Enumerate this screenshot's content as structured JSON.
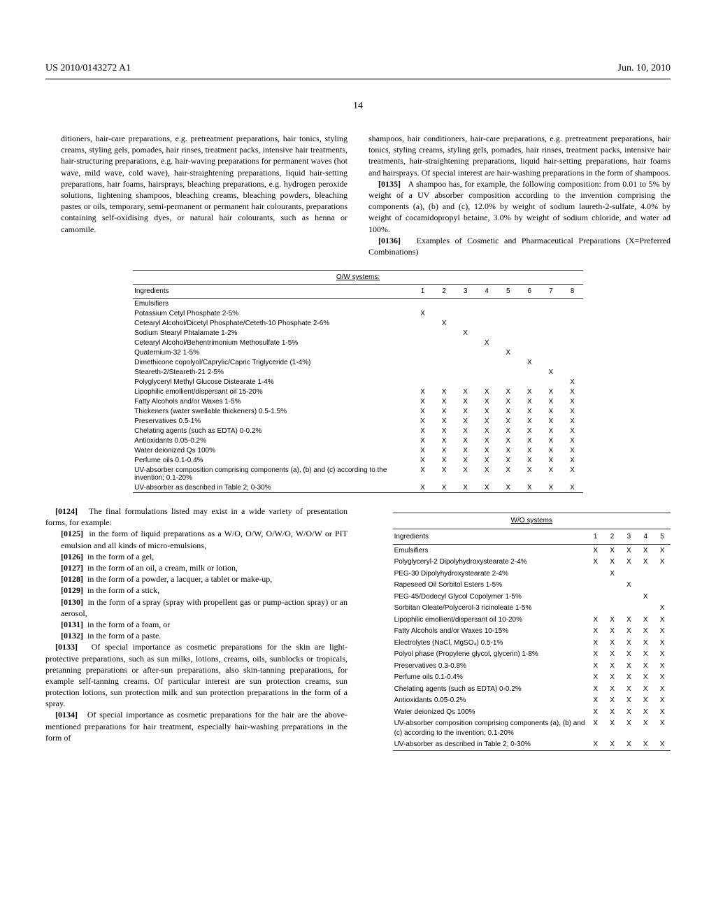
{
  "header": {
    "left": "US 2010/0143272 A1",
    "right": "Jun. 10, 2010"
  },
  "page_number": "14",
  "left_col": {
    "p1": "ditioners, hair-care preparations, e.g. pretreatment preparations, hair tonics, styling creams, styling gels, pomades, hair rinses, treatment packs, intensive hair treatments, hair-structuring preparations, e.g. hair-waving preparations for permanent waves (hot wave, mild wave, cold wave), hair-straightening preparations, liquid hair-setting preparations, hair foams, hairsprays, bleaching preparations, e.g. hydrogen peroxide solutions, lightening shampoos, bleaching creams, bleaching powders, bleaching pastes or oils, temporary, semi-permanent or permanent hair colourants, preparations containing self-oxidising dyes, or natural hair colourants, such as henna or camomile."
  },
  "right_col": {
    "p1": "shampoos, hair conditioners, hair-care preparations, e.g. pretreatment preparations, hair tonics, styling creams, styling gels, pomades, hair rinses, treatment packs, intensive hair treatments, hair-straightening preparations, liquid hair-setting preparations, hair foams and hairsprays. Of special interest are hair-washing preparations in the form of shampoos.",
    "p0135_num": "[0135]",
    "p0135": "A shampoo has, for example, the following composition: from 0.01 to 5% by weight of a UV absorber composition according to the invention comprising the components (a), (b) and (c), 12.0% by weight of sodium laureth-2-sulfate, 4.0% by weight of cocamidopropyl betaine, 3.0% by weight of sodium chloride, and water ad 100%.",
    "p0136_num": "[0136]",
    "p0136": "Examples of Cosmetic and Pharmaceutical Preparations (X=Preferred Combinations)"
  },
  "mid_left": {
    "p0124_num": "[0124]",
    "p0124": "The final formulations listed may exist in a wide variety of presentation forms, for example:",
    "p0125_num": "[0125]",
    "p0125": "in the form of liquid preparations as a W/O, O/W, O/W/O, W/O/W or PIT emulsion and all kinds of micro-emulsions,",
    "p0126_num": "[0126]",
    "p0126": "in the form of a gel,",
    "p0127_num": "[0127]",
    "p0127": "in the form of an oil, a cream, milk or lotion,",
    "p0128_num": "[0128]",
    "p0128": "in the form of a powder, a lacquer, a tablet or make-up,",
    "p0129_num": "[0129]",
    "p0129": "in the form of a stick,",
    "p0130_num": "[0130]",
    "p0130": "in the form of a spray (spray with propellent gas or pump-action spray) or an aerosol,",
    "p0131_num": "[0131]",
    "p0131": "in the form of a foam, or",
    "p0132_num": "[0132]",
    "p0132": "in the form of a paste.",
    "p0133_num": "[0133]",
    "p0133": "Of special importance as cosmetic preparations for the skin are light-protective preparations, such as sun milks, lotions, creams, oils, sunblocks or tropicals, pretanning preparations or after-sun preparations, also skin-tanning preparations, for example self-tanning creams. Of particular interest are sun protection creams, sun protection lotions, sun protection milk and sun protection preparations in the form of a spray.",
    "p0134_num": "[0134]",
    "p0134": "Of special importance as cosmetic preparations for the hair are the above-mentioned preparations for hair treatment, especially hair-washing preparations in the form of"
  },
  "ow_table": {
    "title": "O/W systems:",
    "head_label": "Ingredients",
    "cols": [
      "1",
      "2",
      "3",
      "4",
      "5",
      "6",
      "7",
      "8"
    ],
    "rows": [
      {
        "label": "Emulsifiers",
        "x": [
          "",
          "",
          "",
          "",
          "",
          "",
          "",
          ""
        ]
      },
      {
        "label": "Potassium Cetyl Phosphate 2-5%",
        "x": [
          "X",
          "",
          "",
          "",
          "",
          "",
          "",
          ""
        ]
      },
      {
        "label": "Cetearyl Alcohol/Dicetyl Phosphate/Ceteth-10 Phosphate 2-6%",
        "x": [
          "",
          "X",
          "",
          "",
          "",
          "",
          "",
          ""
        ]
      },
      {
        "label": "Sodium Stearyl Phtalamate 1-2%",
        "x": [
          "",
          "",
          "X",
          "",
          "",
          "",
          "",
          ""
        ]
      },
      {
        "label": "Cetearyl Alcohol/Behentrimonium Methosulfate 1-5%",
        "x": [
          "",
          "",
          "",
          "X",
          "",
          "",
          "",
          ""
        ]
      },
      {
        "label": "Quaternium-32 1-5%",
        "x": [
          "",
          "",
          "",
          "",
          "X",
          "",
          "",
          ""
        ]
      },
      {
        "label": "Dimethicone copolyol/Caprylic/Capric Triglyceride (1-4%)",
        "x": [
          "",
          "",
          "",
          "",
          "",
          "X",
          "",
          ""
        ]
      },
      {
        "label": "Steareth-2/Steareth-21 2-5%",
        "x": [
          "",
          "",
          "",
          "",
          "",
          "",
          "X",
          ""
        ]
      },
      {
        "label": "Polyglyceryl Methyl Glucose Distearate 1-4%",
        "x": [
          "",
          "",
          "",
          "",
          "",
          "",
          "",
          "X"
        ]
      },
      {
        "label": "Lipophilic emollient/dispersant oil 15-20%",
        "x": [
          "X",
          "X",
          "X",
          "X",
          "X",
          "X",
          "X",
          "X"
        ]
      },
      {
        "label": "Fatty Alcohols and/or Waxes 1-5%",
        "x": [
          "X",
          "X",
          "X",
          "X",
          "X",
          "X",
          "X",
          "X"
        ]
      },
      {
        "label": "Thickeners (water swellable thickeners) 0.5-1.5%",
        "x": [
          "X",
          "X",
          "X",
          "X",
          "X",
          "X",
          "X",
          "X"
        ]
      },
      {
        "label": "Preservatives 0.5-1%",
        "x": [
          "X",
          "X",
          "X",
          "X",
          "X",
          "X",
          "X",
          "X"
        ]
      },
      {
        "label": "Chelating agents (such as EDTA) 0-0.2%",
        "x": [
          "X",
          "X",
          "X",
          "X",
          "X",
          "X",
          "X",
          "X"
        ]
      },
      {
        "label": "Antioxidants 0.05-0.2%",
        "x": [
          "X",
          "X",
          "X",
          "X",
          "X",
          "X",
          "X",
          "X"
        ]
      },
      {
        "label": "Water deionized Qs 100%",
        "x": [
          "X",
          "X",
          "X",
          "X",
          "X",
          "X",
          "X",
          "X"
        ]
      },
      {
        "label": "Perfume oils 0.1-0.4%",
        "x": [
          "X",
          "X",
          "X",
          "X",
          "X",
          "X",
          "X",
          "X"
        ]
      },
      {
        "label": "UV-absorber composition comprising components (a), (b) and (c) according to the invention; 0.1-20%",
        "x": [
          "X",
          "X",
          "X",
          "X",
          "X",
          "X",
          "X",
          "X"
        ]
      },
      {
        "label": "UV-absorber as described in Table 2; 0-30%",
        "x": [
          "X",
          "X",
          "X",
          "X",
          "X",
          "X",
          "X",
          "X"
        ]
      }
    ],
    "style": {
      "font_size": 10,
      "rule_color": "#333333",
      "text_color": "#000000",
      "background": "#ffffff",
      "col_widths_pct": [
        62,
        4.75,
        4.75,
        4.75,
        4.75,
        4.75,
        4.75,
        4.75,
        4.75
      ]
    }
  },
  "wo_table": {
    "title": "W/O systems",
    "head_label": "Ingredients",
    "cols": [
      "1",
      "2",
      "3",
      "4",
      "5"
    ],
    "rows": [
      {
        "label": "Emulsifiers",
        "x": [
          "X",
          "X",
          "X",
          "X",
          "X"
        ]
      },
      {
        "label": "Polyglyceryl-2 Dipolyhydroxystearate 2-4%",
        "x": [
          "X",
          "X",
          "X",
          "X",
          "X"
        ]
      },
      {
        "label": "PEG-30 Dipolyhydroxystearate 2-4%",
        "x": [
          "",
          "X",
          "",
          "",
          ""
        ]
      },
      {
        "label": "Rapeseed Oil Sorbitol Esters 1-5%",
        "x": [
          "",
          "",
          "X",
          "",
          ""
        ]
      },
      {
        "label": "PEG-45/Dodecyl Glycol Copolymer 1-5%",
        "x": [
          "",
          "",
          "",
          "X",
          ""
        ]
      },
      {
        "label": "Sorbitan Oleate/Polycerol-3 ricinoleate 1-5%",
        "x": [
          "",
          "",
          "",
          "",
          "X"
        ]
      },
      {
        "label": "Lipophilic emollient/dispersant oil 10-20%",
        "x": [
          "X",
          "X",
          "X",
          "X",
          "X"
        ]
      },
      {
        "label": "Fatty Alcohols and/or Waxes 10-15%",
        "x": [
          "X",
          "X",
          "X",
          "X",
          "X"
        ]
      },
      {
        "label": "Electrolytes (NaCl, MgSO₄) 0.5-1%",
        "x": [
          "X",
          "X",
          "X",
          "X",
          "X"
        ]
      },
      {
        "label": "Polyol phase (Propylene glycol, glycerin) 1-8%",
        "x": [
          "X",
          "X",
          "X",
          "X",
          "X"
        ]
      },
      {
        "label": "Preservatives 0.3-0.8%",
        "x": [
          "X",
          "X",
          "X",
          "X",
          "X"
        ]
      },
      {
        "label": "Perfume oils 0.1-0.4%",
        "x": [
          "X",
          "X",
          "X",
          "X",
          "X"
        ]
      },
      {
        "label": "Chelating agents (such as EDTA) 0-0.2%",
        "x": [
          "X",
          "X",
          "X",
          "X",
          "X"
        ]
      },
      {
        "label": "Antioxidants 0.05-0.2%",
        "x": [
          "X",
          "X",
          "X",
          "X",
          "X"
        ]
      },
      {
        "label": "Water deionized Qs 100%",
        "x": [
          "X",
          "X",
          "X",
          "X",
          "X"
        ]
      },
      {
        "label": "UV-absorber composition comprising components (a), (b) and (c) according to the invention; 0.1-20%",
        "x": [
          "X",
          "X",
          "X",
          "X",
          "X"
        ]
      },
      {
        "label": "UV-absorber as described in Table 2; 0-30%",
        "x": [
          "X",
          "X",
          "X",
          "X",
          "X"
        ]
      }
    ],
    "style": {
      "font_size": 10,
      "rule_color": "#333333",
      "text_color": "#000000",
      "background": "#ffffff",
      "col_widths_pct": [
        70,
        6,
        6,
        6,
        6,
        6
      ]
    }
  }
}
